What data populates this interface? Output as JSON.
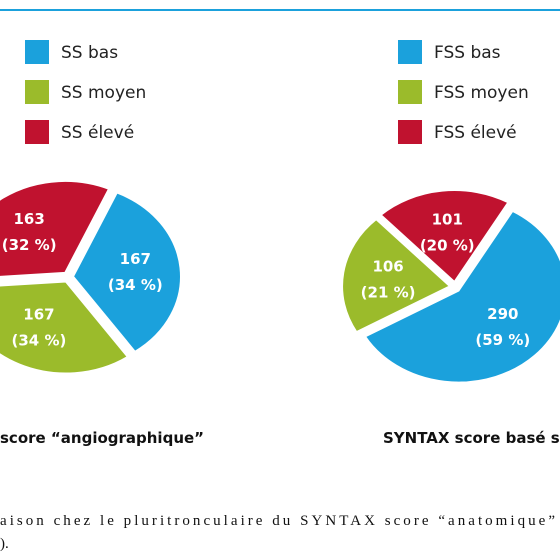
{
  "chart_data": [
    {
      "type": "pie",
      "title": "score “angiographique”",
      "categories": [
        "SS bas",
        "SS moyen",
        "SS élevé"
      ],
      "values": [
        167,
        167,
        163
      ],
      "percent_labels": [
        "(34 %)",
        "(34 %)",
        "(32 %)"
      ],
      "colors": [
        "#1ba1dc",
        "#9bbb2b",
        "#c0122f"
      ]
    },
    {
      "type": "pie",
      "title": "SYNTAX score basé s",
      "categories": [
        "FSS bas",
        "FSS moyen",
        "FSS élevé"
      ],
      "values": [
        290,
        106,
        101
      ],
      "percent_labels": [
        "(59 %)",
        "(21 %)",
        "(20 %)"
      ],
      "colors": [
        "#1ba1dc",
        "#9bbb2b",
        "#c0122f"
      ]
    }
  ],
  "caption": [
    "aison chez le pluritronculaire du SYNTAX score “anatomique”",
    ")."
  ]
}
